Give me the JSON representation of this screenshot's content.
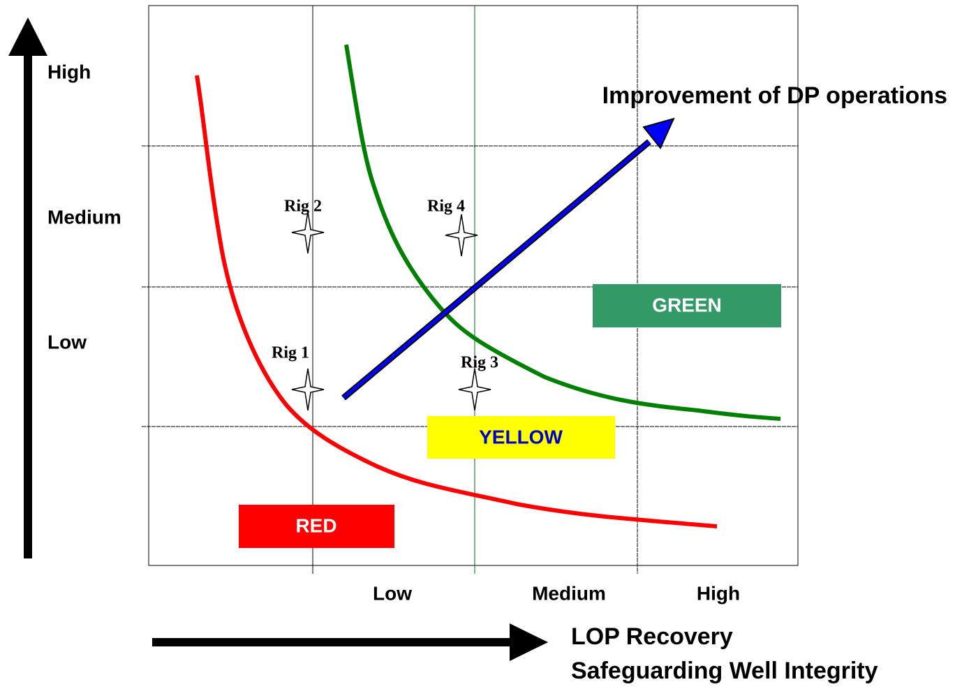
{
  "y_axis": {
    "labels": [
      "High",
      "Medium",
      "Low"
    ]
  },
  "x_axis": {
    "labels": [
      "Low",
      "Medium",
      "High"
    ],
    "title_lines": [
      "LOP Recovery",
      "Safeguarding Well Integrity"
    ]
  },
  "arrow_label": "Improvement of DP operations",
  "zones": [
    "GREEN",
    "YELLOW",
    "RED"
  ],
  "rigs": [
    "Rig 1",
    "Rig 2",
    "Rig 3",
    "Rig 4"
  ]
}
